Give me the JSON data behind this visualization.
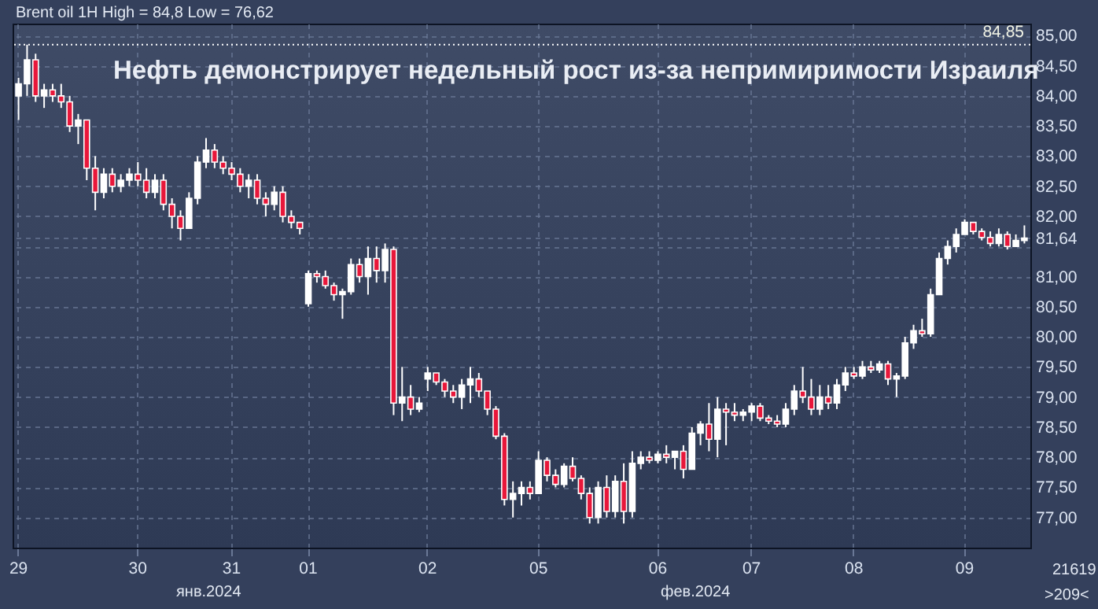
{
  "chart_data": {
    "type": "candlestick",
    "title": "Нефть демонстрирует недельный рост из-за непримиримости Израиля",
    "subtitle": "Brent oil 1H High = 84,8 Low = 76,62",
    "annotations": [
      "янв.2024",
      "фев.2024",
      "21619",
      ">209<"
    ],
    "categories": [
      "29",
      null,
      null,
      null,
      null,
      null,
      null,
      null,
      null,
      null,
      null,
      null,
      null,
      null,
      "30",
      null,
      null,
      null,
      null,
      null,
      null,
      null,
      null,
      null,
      null,
      "31",
      null,
      null,
      null,
      null,
      null,
      null,
      null,
      null,
      "01",
      null,
      null,
      null,
      null,
      null,
      null,
      null,
      null,
      null,
      null,
      null,
      null,
      null,
      "02",
      null,
      null,
      null,
      null,
      null,
      null,
      null,
      null,
      null,
      null,
      null,
      null,
      "05",
      null,
      null,
      null,
      null,
      null,
      null,
      null,
      null,
      null,
      null,
      null,
      null,
      null,
      "06",
      null,
      null,
      null,
      null,
      null,
      null,
      null,
      null,
      null,
      null,
      "07",
      null,
      null,
      null,
      null,
      null,
      null,
      null,
      null,
      null,
      null,
      null,
      "08",
      null,
      null,
      null,
      null,
      null,
      null,
      null,
      null,
      null,
      null,
      null,
      null,
      "09",
      null,
      null,
      null,
      null,
      null,
      null,
      null
    ],
    "ohlc": [
      [
        84.0,
        84.3,
        83.6,
        84.2
      ],
      [
        84.2,
        84.85,
        84.0,
        84.6
      ],
      [
        84.6,
        84.7,
        83.9,
        84.0
      ],
      [
        84.0,
        84.2,
        83.8,
        84.1
      ],
      [
        84.1,
        84.2,
        83.9,
        84.0
      ],
      [
        84.0,
        84.2,
        83.8,
        83.9
      ],
      [
        83.9,
        84.0,
        83.4,
        83.5
      ],
      [
        83.5,
        83.7,
        83.2,
        83.6
      ],
      [
        83.6,
        83.6,
        82.6,
        82.8
      ],
      [
        82.8,
        83.0,
        82.1,
        82.4
      ],
      [
        82.4,
        82.8,
        82.3,
        82.7
      ],
      [
        82.7,
        82.8,
        82.4,
        82.5
      ],
      [
        82.5,
        82.7,
        82.4,
        82.6
      ],
      [
        82.6,
        82.8,
        82.5,
        82.7
      ],
      [
        82.7,
        82.9,
        82.5,
        82.6
      ],
      [
        82.6,
        82.8,
        82.3,
        82.4
      ],
      [
        82.4,
        82.7,
        82.3,
        82.6
      ],
      [
        82.6,
        82.7,
        82.1,
        82.2
      ],
      [
        82.2,
        82.3,
        81.8,
        82.0
      ],
      [
        82.0,
        82.1,
        81.6,
        81.8
      ],
      [
        81.8,
        82.4,
        81.8,
        82.3
      ],
      [
        82.3,
        83.0,
        82.2,
        82.9
      ],
      [
        82.9,
        83.3,
        82.8,
        83.1
      ],
      [
        83.1,
        83.2,
        82.8,
        82.9
      ],
      [
        82.9,
        83.0,
        82.7,
        82.8
      ],
      [
        82.8,
        82.9,
        82.6,
        82.7
      ],
      [
        82.7,
        82.8,
        82.4,
        82.5
      ],
      [
        82.5,
        82.7,
        82.3,
        82.6
      ],
      [
        82.6,
        82.7,
        82.2,
        82.3
      ],
      [
        82.3,
        82.4,
        82.0,
        82.2
      ],
      [
        82.2,
        82.5,
        82.1,
        82.4
      ],
      [
        82.4,
        82.5,
        81.9,
        82.0
      ],
      [
        82.0,
        82.1,
        81.8,
        81.9
      ],
      [
        81.9,
        81.9,
        81.7,
        81.8
      ],
      [
        80.55,
        81.1,
        80.5,
        81.05
      ],
      [
        81.05,
        81.1,
        80.9,
        81.0
      ],
      [
        81.0,
        81.1,
        80.8,
        80.85
      ],
      [
        80.85,
        80.9,
        80.6,
        80.7
      ],
      [
        80.7,
        80.8,
        80.3,
        80.75
      ],
      [
        80.75,
        81.3,
        80.7,
        81.2
      ],
      [
        81.2,
        81.3,
        80.9,
        81.0
      ],
      [
        81.0,
        81.5,
        80.7,
        81.3
      ],
      [
        81.3,
        81.5,
        80.9,
        81.1
      ],
      [
        81.1,
        81.55,
        80.9,
        81.45
      ],
      [
        81.45,
        81.5,
        78.7,
        78.9
      ],
      [
        78.9,
        79.5,
        78.6,
        79.0
      ],
      [
        79.0,
        79.2,
        78.7,
        78.8
      ],
      [
        78.8,
        79.0,
        78.75,
        78.9
      ],
      [
        79.3,
        79.5,
        79.1,
        79.4
      ],
      [
        79.4,
        79.4,
        79.2,
        79.25
      ],
      [
        79.25,
        79.3,
        79.0,
        79.1
      ],
      [
        79.1,
        79.2,
        78.9,
        79.0
      ],
      [
        79.0,
        79.3,
        78.8,
        79.2
      ],
      [
        79.2,
        79.5,
        78.9,
        79.3
      ],
      [
        79.3,
        79.4,
        79.0,
        79.1
      ],
      [
        79.1,
        79.1,
        78.7,
        78.8
      ],
      [
        78.8,
        78.85,
        78.3,
        78.35
      ],
      [
        78.35,
        78.4,
        77.2,
        77.3
      ],
      [
        77.3,
        77.6,
        77.0,
        77.4
      ],
      [
        77.4,
        77.6,
        77.2,
        77.5
      ],
      [
        77.5,
        77.6,
        77.3,
        77.4
      ],
      [
        77.4,
        78.1,
        77.4,
        77.95
      ],
      [
        77.95,
        78.0,
        77.6,
        77.7
      ],
      [
        77.7,
        77.8,
        77.5,
        77.55
      ],
      [
        77.55,
        77.9,
        77.5,
        77.85
      ],
      [
        77.85,
        78.0,
        77.6,
        77.65
      ],
      [
        77.65,
        77.7,
        77.3,
        77.4
      ],
      [
        77.4,
        77.5,
        76.9,
        77.0
      ],
      [
        77.0,
        77.6,
        76.9,
        77.5
      ],
      [
        77.5,
        77.7,
        77.0,
        77.1
      ],
      [
        77.1,
        77.7,
        77.0,
        77.6
      ],
      [
        77.6,
        77.9,
        76.9,
        77.1
      ],
      [
        77.1,
        78.1,
        77.0,
        77.9
      ],
      [
        77.9,
        78.1,
        77.8,
        78.0
      ],
      [
        78.0,
        78.1,
        77.9,
        77.95
      ],
      [
        77.95,
        78.1,
        77.9,
        78.05
      ],
      [
        78.05,
        78.2,
        77.9,
        78.0
      ],
      [
        78.0,
        78.1,
        77.8,
        78.1
      ],
      [
        78.1,
        78.2,
        77.65,
        77.8
      ],
      [
        77.8,
        78.5,
        77.8,
        78.4
      ],
      [
        78.4,
        78.6,
        78.2,
        78.55
      ],
      [
        78.55,
        78.9,
        78.1,
        78.3
      ],
      [
        78.3,
        79.0,
        78.0,
        78.8
      ],
      [
        78.8,
        78.9,
        78.2,
        78.75
      ],
      [
        78.75,
        78.9,
        78.6,
        78.7
      ],
      [
        78.7,
        78.8,
        78.6,
        78.75
      ],
      [
        78.75,
        78.9,
        78.6,
        78.85
      ],
      [
        78.85,
        78.9,
        78.6,
        78.65
      ],
      [
        78.65,
        78.7,
        78.55,
        78.6
      ],
      [
        78.6,
        78.7,
        78.5,
        78.55
      ],
      [
        78.55,
        78.9,
        78.5,
        78.8
      ],
      [
        78.8,
        79.2,
        78.7,
        79.1
      ],
      [
        79.1,
        79.5,
        78.9,
        79.0
      ],
      [
        79.0,
        79.3,
        78.7,
        78.8
      ],
      [
        78.8,
        79.2,
        78.7,
        79.0
      ],
      [
        79.0,
        79.2,
        78.8,
        78.9
      ],
      [
        78.9,
        79.3,
        78.8,
        79.2
      ],
      [
        79.2,
        79.5,
        79.1,
        79.4
      ],
      [
        79.4,
        79.5,
        79.3,
        79.35
      ],
      [
        79.35,
        79.6,
        79.3,
        79.5
      ],
      [
        79.5,
        79.6,
        79.4,
        79.45
      ],
      [
        79.45,
        79.6,
        79.4,
        79.55
      ],
      [
        79.55,
        79.6,
        79.2,
        79.3
      ],
      [
        79.3,
        79.4,
        79.0,
        79.35
      ],
      [
        79.35,
        80.0,
        79.3,
        79.9
      ],
      [
        79.9,
        80.2,
        79.8,
        80.1
      ],
      [
        80.1,
        80.3,
        80.0,
        80.05
      ],
      [
        80.05,
        80.8,
        80.0,
        80.7
      ],
      [
        80.7,
        81.4,
        80.7,
        81.3
      ],
      [
        81.3,
        81.6,
        81.2,
        81.5
      ],
      [
        81.5,
        81.8,
        81.4,
        81.7
      ],
      [
        81.7,
        81.95,
        81.7,
        81.9
      ],
      [
        81.9,
        81.9,
        81.7,
        81.75
      ],
      [
        81.75,
        81.8,
        81.6,
        81.65
      ],
      [
        81.65,
        81.75,
        81.5,
        81.55
      ],
      [
        81.55,
        81.8,
        81.5,
        81.7
      ],
      [
        81.7,
        81.75,
        81.45,
        81.5
      ],
      [
        81.5,
        81.7,
        81.5,
        81.6
      ],
      [
        81.6,
        81.85,
        81.55,
        81.64
      ]
    ],
    "color": "#ffffff",
    "colors": [
      "#ffffff",
      "#ffffff",
      "#e8173a",
      "#ffffff",
      "#e8173a",
      "#e8173a",
      "#e8173a",
      "#ffffff",
      "#e8173a",
      "#e8173a",
      "#ffffff",
      "#e8173a",
      "#ffffff",
      "#ffffff",
      "#e8173a",
      "#e8173a",
      "#ffffff",
      "#e8173a",
      "#e8173a",
      "#e8173a",
      "#ffffff",
      "#ffffff",
      "#ffffff",
      "#e8173a",
      "#e8173a",
      "#e8173a",
      "#e8173a",
      "#ffffff",
      "#e8173a",
      "#e8173a",
      "#ffffff",
      "#e8173a",
      "#e8173a",
      "#e8173a",
      "#ffffff",
      "#e8173a",
      "#e8173a",
      "#e8173a",
      "#ffffff",
      "#ffffff",
      "#e8173a",
      "#ffffff",
      "#e8173a",
      "#ffffff",
      "#e8173a",
      "#ffffff",
      "#e8173a",
      "#ffffff",
      "#ffffff",
      "#e8173a",
      "#e8173a",
      "#e8173a",
      "#ffffff",
      "#ffffff",
      "#e8173a",
      "#e8173a",
      "#e8173a",
      "#e8173a",
      "#ffffff",
      "#ffffff",
      "#e8173a",
      "#ffffff",
      "#e8173a",
      "#e8173a",
      "#ffffff",
      "#e8173a",
      "#e8173a",
      "#e8173a",
      "#ffffff",
      "#e8173a",
      "#ffffff",
      "#e8173a",
      "#ffffff",
      "#ffffff",
      "#e8173a",
      "#ffffff",
      "#e8173a",
      "#ffffff",
      "#e8173a",
      "#ffffff",
      "#ffffff",
      "#e8173a",
      "#ffffff",
      "#e8173a",
      "#e8173a",
      "#ffffff",
      "#ffffff",
      "#e8173a",
      "#e8173a",
      "#e8173a",
      "#ffffff",
      "#ffffff",
      "#e8173a",
      "#e8173a",
      "#ffffff",
      "#e8173a",
      "#ffffff",
      "#ffffff",
      "#e8173a",
      "#ffffff",
      "#e8173a",
      "#ffffff",
      "#e8173a",
      "#ffffff",
      "#ffffff",
      "#ffffff",
      "#e8173a",
      "#ffffff",
      "#ffffff",
      "#ffffff",
      "#ffffff",
      "#ffffff",
      "#e8173a",
      "#e8173a",
      "#e8173a",
      "#ffffff",
      "#e8173a",
      "#ffffff",
      "#ffffff"
    ],
    "ylim": [
      76.5,
      85.2
    ],
    "yticks": [
      {
        "value": 77,
        "label": "77,00"
      },
      {
        "value": 77.5,
        "label": "77,50"
      },
      {
        "value": 78,
        "label": "78,00"
      },
      {
        "value": 78.5,
        "label": "78,50"
      },
      {
        "value": 79,
        "label": "79,00"
      },
      {
        "value": 79.5,
        "label": "79,50"
      },
      {
        "value": 80,
        "label": "80,00"
      },
      {
        "value": 80.5,
        "label": "80,50"
      },
      {
        "value": 81,
        "label": "81,00"
      },
      {
        "value": 81.5,
        "label": null
      },
      {
        "value": 81.64,
        "label": "81,64"
      },
      {
        "value": 82,
        "label": "82,00"
      },
      {
        "value": 82.5,
        "label": "82,50"
      },
      {
        "value": 83,
        "label": "83,00"
      },
      {
        "value": 83.5,
        "label": "83,50"
      },
      {
        "value": 84,
        "label": "84,00"
      },
      {
        "value": 84.5,
        "label": "84,50"
      },
      {
        "value": 85,
        "label": "85,00"
      }
    ],
    "ref_lines": [
      {
        "axis": "y",
        "value": 84.85,
        "label": "84,85",
        "color": "#ffffff",
        "line_style": "dotted"
      }
    ],
    "grid": true
  }
}
